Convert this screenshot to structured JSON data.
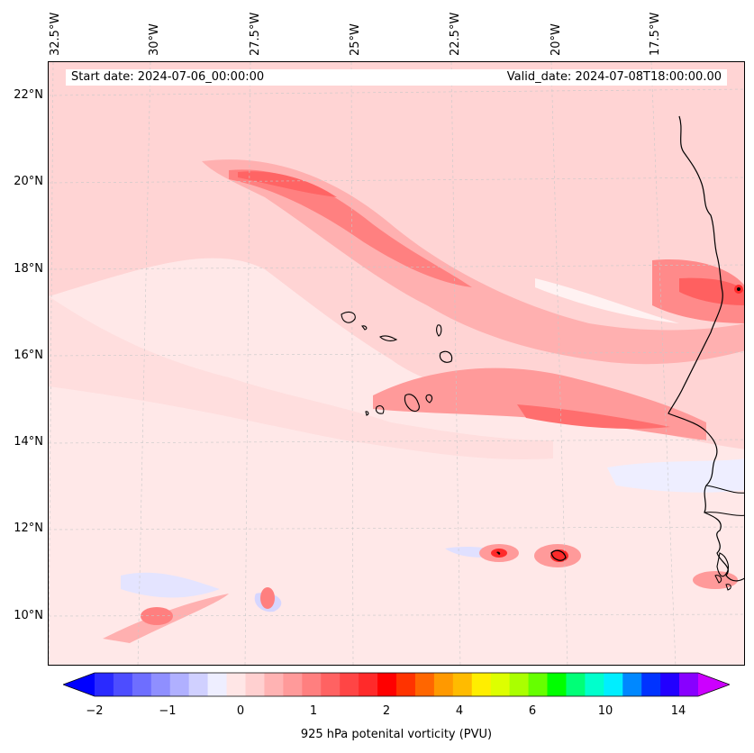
{
  "map": {
    "info": {
      "start_date": "Start date: 2024-07-06_00:00:00",
      "valid_date": "Valid_date: 2024-07-08T18:00:00.00"
    },
    "lat_labels": [
      "22°N",
      "20°N",
      "18°N",
      "16°N",
      "14°N",
      "12°N",
      "10°N"
    ],
    "lon_labels": [
      "32.5°W",
      "30°W",
      "27.5°W",
      "25°W",
      "22.5°W",
      "20°W",
      "17.5°W"
    ],
    "colorbar": {
      "ticks": [
        "−2",
        "−1",
        "0",
        "1",
        "2",
        "4",
        "6",
        "10",
        "14"
      ],
      "title": "925 hPa potenital vorticity (PVU)",
      "colors": [
        "#0000ff",
        "#2a2aff",
        "#4d4dff",
        "#6e6eff",
        "#8f8fff",
        "#b0b0ff",
        "#d0d0ff",
        "#eeeeff",
        "#ffe6e6",
        "#ffd0d0",
        "#ffb3b3",
        "#ff9a9a",
        "#ff7f7f",
        "#ff6262",
        "#ff4545",
        "#ff2a2a",
        "#ff0000",
        "#ff3300",
        "#ff6600",
        "#ff9900",
        "#ffbb00",
        "#ffee00",
        "#ddff00",
        "#aaff00",
        "#66ff00",
        "#00ff00",
        "#00ff77",
        "#00ffcc",
        "#00eeff",
        "#0088ff",
        "#0033ff",
        "#2200ff",
        "#8800ff",
        "#cc00ff"
      ]
    }
  }
}
